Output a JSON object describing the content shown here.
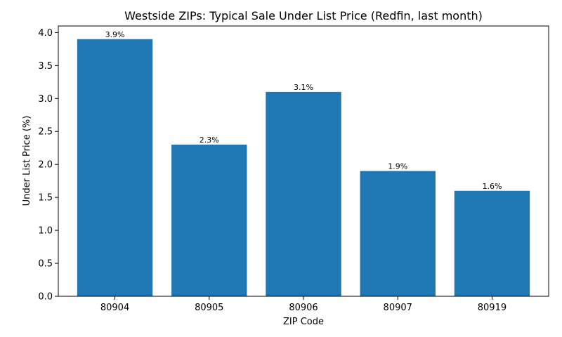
{
  "chart_data": {
    "type": "bar",
    "title": "Westside ZIPs: Typical Sale Under List Price (Redfin, last month)",
    "xlabel": "ZIP Code",
    "ylabel": "Under List Price (%)",
    "categories": [
      "80904",
      "80905",
      "80906",
      "80907",
      "80919"
    ],
    "values": [
      3.9,
      2.3,
      3.1,
      1.9,
      1.6
    ],
    "data_labels": [
      "3.9%",
      "2.3%",
      "3.1%",
      "1.9%",
      "1.6%"
    ],
    "ylim": [
      0,
      4.1
    ],
    "yticks": [
      0.0,
      0.5,
      1.0,
      1.5,
      2.0,
      2.5,
      3.0,
      3.5,
      4.0
    ],
    "ytick_labels": [
      "0.0",
      "0.5",
      "1.0",
      "1.5",
      "2.0",
      "2.5",
      "3.0",
      "3.5",
      "4.0"
    ],
    "bar_color": "#1f77b4",
    "grid": false,
    "legend": "none"
  }
}
